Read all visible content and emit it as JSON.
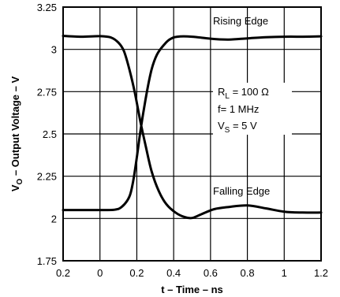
{
  "chart_data": {
    "type": "line",
    "xlabel": "t – Time – ns",
    "ylabel_parts": [
      "V",
      "O",
      " – Output Voltage – V"
    ],
    "x_tick_labels": [
      "0.2",
      "0",
      "0.2",
      "0.4",
      "0.6",
      "0.8",
      "1",
      "1.2"
    ],
    "y_tick_labels": [
      "1.75",
      "2",
      "2.25",
      "2.5",
      "2.75",
      "3",
      "3.25"
    ],
    "y_ticks": [
      1.75,
      2,
      2.25,
      2.5,
      2.75,
      3,
      3.25
    ],
    "xlim": [
      -0.2,
      1.2
    ],
    "ylim": [
      1.75,
      3.25
    ],
    "grid": true,
    "series": [
      {
        "name": "Rising Edge",
        "x": [
          -0.2,
          0.0,
          0.08,
          0.12,
          0.16,
          0.18,
          0.2,
          0.22,
          0.25,
          0.28,
          0.31,
          0.35,
          0.38,
          0.42,
          0.5,
          0.6,
          0.7,
          0.8,
          0.9,
          1.0,
          1.1,
          1.2
        ],
        "y": [
          2.05,
          2.05,
          2.052,
          2.07,
          2.13,
          2.22,
          2.36,
          2.52,
          2.72,
          2.88,
          2.97,
          3.03,
          3.06,
          3.075,
          3.075,
          3.063,
          3.058,
          3.065,
          3.072,
          3.075,
          3.075,
          3.077
        ]
      },
      {
        "name": "Falling Edge",
        "x": [
          -0.2,
          -0.1,
          0.0,
          0.06,
          0.1,
          0.13,
          0.16,
          0.19,
          0.22,
          0.25,
          0.28,
          0.32,
          0.36,
          0.41,
          0.46,
          0.5,
          0.55,
          0.62,
          0.7,
          0.8,
          0.9,
          1.0,
          1.1,
          1.2
        ],
        "y": [
          3.08,
          3.075,
          3.078,
          3.07,
          3.04,
          2.99,
          2.88,
          2.74,
          2.57,
          2.42,
          2.28,
          2.16,
          2.085,
          2.035,
          2.008,
          2.003,
          2.025,
          2.055,
          2.068,
          2.077,
          2.06,
          2.04,
          2.035,
          2.035
        ]
      }
    ],
    "annotations": [
      {
        "id": "rl",
        "parts": [
          "R",
          "L",
          " = 100 Ω"
        ]
      },
      {
        "id": "freq",
        "text": "f= 1 MHz"
      },
      {
        "id": "vs",
        "parts": [
          "V",
          "S",
          " = 5 V"
        ]
      }
    ]
  }
}
